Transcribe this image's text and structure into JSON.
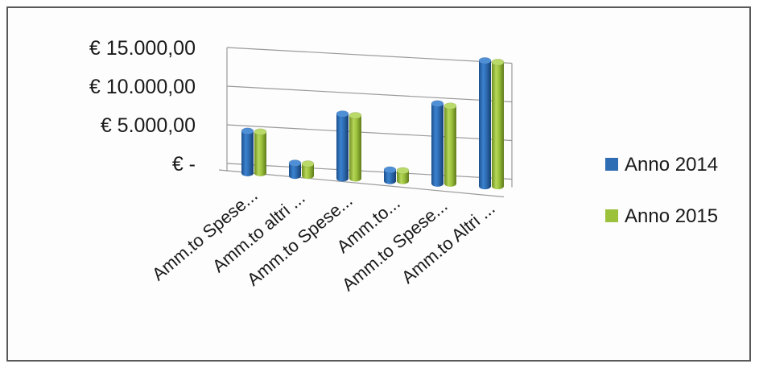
{
  "chart_data": {
    "type": "bar",
    "title": "",
    "xlabel": "",
    "ylabel": "",
    "categories": [
      "Amm.to Spese...",
      "Amm.to altri ...",
      "Amm.to Spese...",
      "Amm.to...",
      "Amm.to Spese...",
      "Amm.to Altri ..."
    ],
    "series": [
      {
        "name": "Anno 2014",
        "color": "#2e6db3",
        "values": [
          4600,
          800,
          7500,
          600,
          9500,
          15400
        ]
      },
      {
        "name": "Anno 2015",
        "color": "#9cc23c",
        "values": [
          4500,
          700,
          7300,
          500,
          9200,
          15200
        ]
      }
    ],
    "ylim": [
      0,
      15000
    ],
    "yticks": [
      0,
      5000,
      10000,
      15000
    ],
    "ytick_labels": [
      "€ -",
      "€ 5.000,00",
      "€ 10.000,00",
      "€ 15.000,00"
    ],
    "grid": true,
    "legend_position": "right",
    "style": "3d-cylinder"
  }
}
